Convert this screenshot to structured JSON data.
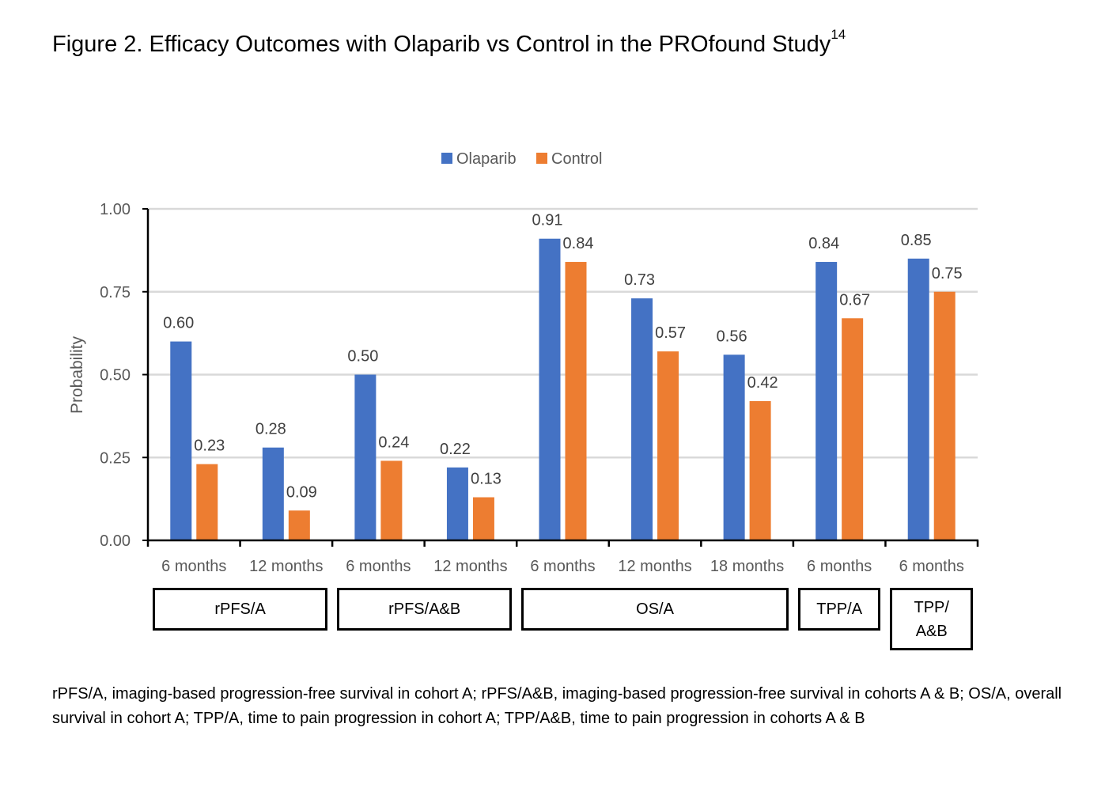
{
  "title": {
    "text": "Figure 2. Efficacy Outcomes with Olaparib vs Control in the PROfound Study",
    "superscript": "14"
  },
  "chart_data": {
    "type": "bar",
    "categories": [
      "6 months",
      "12 months",
      "6 months",
      "12 months",
      "6 months",
      "12 months",
      "18 months",
      "6 months",
      "6 months"
    ],
    "groups": [
      {
        "label": "rPFS/A",
        "span": 2
      },
      {
        "label": "rPFS/A&B",
        "span": 2
      },
      {
        "label": "OS/A",
        "span": 3
      },
      {
        "label": "TPP/A",
        "span": 1
      },
      {
        "label": "TPP/\nA&B",
        "span": 1
      }
    ],
    "series": [
      {
        "name": "Olaparib",
        "color": "#4472C4",
        "values": [
          0.6,
          0.28,
          0.5,
          0.22,
          0.91,
          0.73,
          0.56,
          0.84,
          0.85
        ]
      },
      {
        "name": "Control",
        "color": "#ED7D31",
        "values": [
          0.23,
          0.09,
          0.24,
          0.13,
          0.84,
          0.57,
          0.42,
          0.67,
          0.75
        ]
      }
    ],
    "ylabel": "Probability",
    "ylim": [
      0,
      1
    ],
    "yticks": [
      "0.00",
      "0.25",
      "0.50",
      "0.75",
      "1.00"
    ],
    "grid": true,
    "legend_position": "top"
  },
  "footnote": "rPFS/A, imaging-based progression-free survival in cohort A; rPFS/A&B, imaging-based progression-free survival in cohorts A & B; OS/A, overall survival in cohort A; TPP/A, time to pain progression in cohort A; TPP/A&B, time to pain progression in cohorts A & B"
}
